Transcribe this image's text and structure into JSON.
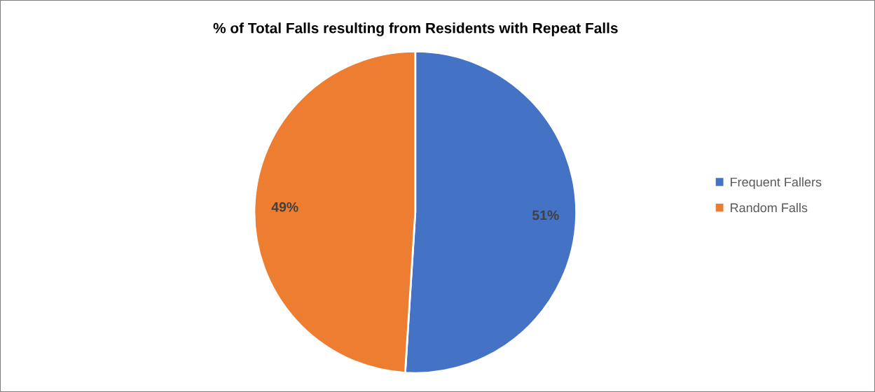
{
  "chart_data": {
    "type": "pie",
    "title": "% of Total Falls resulting from Residents with Repeat Falls",
    "categories": [
      "Frequent Fallers",
      "Random Falls"
    ],
    "values": [
      51,
      49
    ],
    "colors": [
      "#4472c4",
      "#ed7d31"
    ],
    "data_labels": true,
    "value_labels": [
      "51%",
      "49%"
    ],
    "legend": "right"
  }
}
